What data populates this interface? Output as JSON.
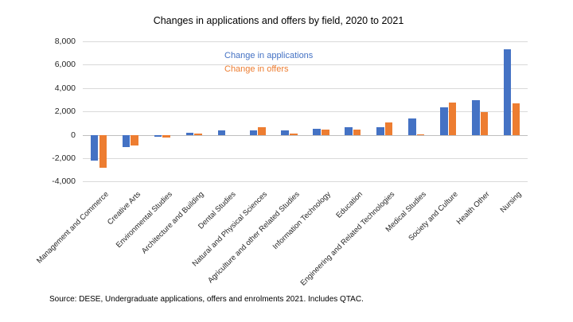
{
  "source_note": "Source: DESE, Undergraduate applications, offers and enrolments 2021. Includes QTAC.",
  "colors": {
    "applications": "#4472C4",
    "offers": "#ED7D31",
    "gridline": "#D9D9D9",
    "zero_axis": "#BFBFBF",
    "title_text": "#000000",
    "tick_text": "#262626"
  },
  "chart_data": {
    "type": "bar",
    "title": "Changes in applications and offers by field, 2020 to 2021",
    "categories": [
      "Management and Commerce",
      "Creative Arts",
      "Environmental Studies",
      "Architecture and Building",
      "Dental Studies",
      "Natural and Physical Sciences",
      "Agriculture and other Related Studies",
      "Information Technology",
      "Education",
      "Engineering and Related Technologies",
      "Medical Studies",
      "Society and Culture",
      "Health Other",
      "Nursing"
    ],
    "series": [
      {
        "name": "Change in applications",
        "color": "#4472C4",
        "values": [
          -2200,
          -1050,
          -100,
          220,
          380,
          380,
          420,
          550,
          650,
          690,
          1400,
          2400,
          3000,
          7350
        ]
      },
      {
        "name": "Change in offers",
        "color": "#ED7D31",
        "values": [
          -2800,
          -850,
          -200,
          140,
          0,
          650,
          160,
          480,
          480,
          1100,
          100,
          2800,
          1950,
          2750
        ]
      }
    ],
    "ylim": [
      -4000,
      8000
    ],
    "ytick_step": 2000,
    "ytick_labels": [
      "-4,000",
      "-2,000",
      "0",
      "2,000",
      "4,000",
      "6,000",
      "8,000"
    ],
    "grid": true,
    "legend_position": "inside-top-center",
    "xlabel": "",
    "ylabel": ""
  }
}
